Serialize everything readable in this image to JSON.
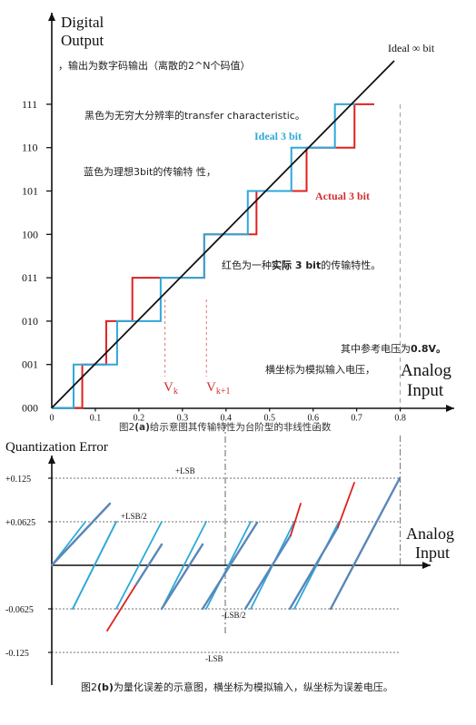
{
  "top_chart": {
    "ylabel_lines": [
      "Digital",
      "Output"
    ],
    "xlabel_lines": [
      "Analog",
      "Input"
    ],
    "y_codes": [
      "000",
      "001",
      "010",
      "011",
      "100",
      "101",
      "110",
      "111"
    ],
    "x_ticks": [
      "0",
      "0.1",
      "0.2",
      "0.3",
      "0.4",
      "0.5",
      "0.6",
      "0.7",
      "0.8"
    ],
    "ideal_inf_label": "Ideal ∞ bit",
    "ideal3_label": "Ideal 3 bit",
    "actual3_label": "Actual 3 bit",
    "vk_label": "V",
    "vk_sub": "k",
    "vk1_label": "V",
    "vk1_sub": "k+1",
    "notes": {
      "n1": "，输出为数字码输出（离散的2^N个码值）",
      "n2": "黑色为无穷大分辨率的transfer characteristic。",
      "n3": "蓝色为理想3bit的传输特 性，",
      "n4a": "红色为一种",
      "n4b": "实际 3 bit",
      "n4c": "的传输特性。",
      "n5a": "其中参考电压为",
      "n5b": "0.8V。",
      "n6": "横坐标为模拟输入电压，"
    },
    "caption_a": "图2",
    "caption_b": "(a)",
    "caption_c": "给示意图其传输特性为台阶型的非线性函数"
  },
  "bottom_chart": {
    "ylabel": "Quantization Error",
    "xlabel_lines": [
      "Analog",
      "Input"
    ],
    "y_ticks": [
      "+0.125",
      "+0.0625",
      "-0.0625",
      "-0.125"
    ],
    "lsb_pos": "+LSB",
    "lsb_half_pos": "+LSB/2",
    "lsb_half_neg": "-LSB/2",
    "lsb_neg": "-LSB",
    "caption_a": "图2",
    "caption_b": "(b)",
    "caption_c": "为量化误差的示意图，横坐标为模拟输入，纵坐标为误差电压。"
  },
  "colors": {
    "ideal_inf": "#111111",
    "ideal3": "#2ea8d8",
    "actual3": "#e02020",
    "error_line": "#5a86b8",
    "error_ideal": "#2ea8d8",
    "error_actual": "#e02020",
    "annotation": "#d03030"
  },
  "chart_data": {
    "type": "line",
    "x_range": [
      0,
      0.8
    ],
    "y_codes": [
      "000",
      "001",
      "010",
      "011",
      "100",
      "101",
      "110",
      "111"
    ],
    "ideal_inf": {
      "x": [
        0,
        0.8
      ],
      "y": [
        0,
        8
      ]
    },
    "ideal3_thresholds": [
      0.05,
      0.15,
      0.25,
      0.35,
      0.45,
      0.55,
      0.65
    ],
    "actual3_thresholds": [
      0.07,
      0.125,
      0.185,
      0.35,
      0.47,
      0.585,
      0.695
    ],
    "vk": 0.26,
    "vk1": 0.355,
    "quantization_error": {
      "y_range": [
        -0.125,
        0.125
      ],
      "levels": [
        0.125,
        0.0625,
        -0.0625,
        -0.125
      ]
    }
  }
}
